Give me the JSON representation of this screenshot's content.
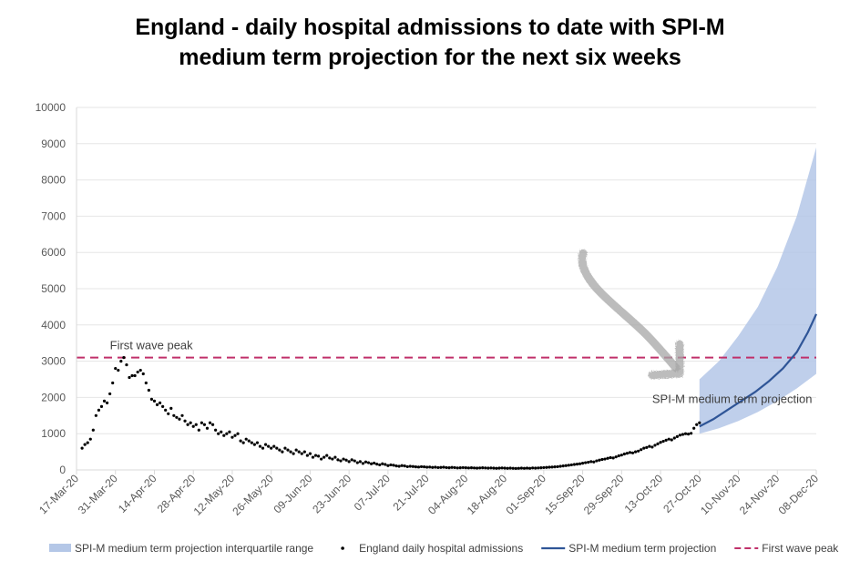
{
  "title_lines": [
    "England - daily hospital admissions to date with SPI-M",
    "medium term projection for the next six weeks"
  ],
  "chart_data": {
    "type": "line",
    "title": "England - daily hospital admissions to date with SPI-M medium term projection for the next six weeks",
    "xlabel": "",
    "ylabel": "",
    "ylim": [
      0,
      10000
    ],
    "yticks": [
      0,
      1000,
      2000,
      3000,
      4000,
      5000,
      6000,
      7000,
      8000,
      9000,
      10000
    ],
    "xlim": [
      "2020-03-17",
      "2020-12-08"
    ],
    "xticks": [
      "17-Mar-20",
      "31-Mar-20",
      "14-Apr-20",
      "28-Apr-20",
      "12-May-20",
      "26-May-20",
      "09-Jun-20",
      "23-Jun-20",
      "07-Jul-20",
      "21-Jul-20",
      "04-Aug-20",
      "18-Aug-20",
      "01-Sep-20",
      "15-Sep-20",
      "29-Sep-20",
      "13-Oct-20",
      "27-Oct-20",
      "10-Nov-20",
      "24-Nov-20",
      "08-Dec-20"
    ],
    "grid": "horizontal",
    "legend_position": "bottom",
    "colors": {
      "admissions": "#000000",
      "projection": "#2f5597",
      "band": "#b4c7e7",
      "first_wave_peak": "#c0306a"
    },
    "series": [
      {
        "name": "England daily hospital admissions",
        "style": "dots",
        "points": [
          [
            "2020-03-19",
            600
          ],
          [
            "2020-03-20",
            700
          ],
          [
            "2020-03-21",
            750
          ],
          [
            "2020-03-22",
            850
          ],
          [
            "2020-03-23",
            1100
          ],
          [
            "2020-03-24",
            1500
          ],
          [
            "2020-03-25",
            1650
          ],
          [
            "2020-03-26",
            1750
          ],
          [
            "2020-03-27",
            1900
          ],
          [
            "2020-03-28",
            1850
          ],
          [
            "2020-03-29",
            2100
          ],
          [
            "2020-03-30",
            2400
          ],
          [
            "2020-03-31",
            2800
          ],
          [
            "2020-04-01",
            2750
          ],
          [
            "2020-04-02",
            3000
          ],
          [
            "2020-04-03",
            3100
          ],
          [
            "2020-04-04",
            2900
          ],
          [
            "2020-04-05",
            2550
          ],
          [
            "2020-04-06",
            2600
          ],
          [
            "2020-04-07",
            2600
          ],
          [
            "2020-04-08",
            2700
          ],
          [
            "2020-04-09",
            2750
          ],
          [
            "2020-04-10",
            2650
          ],
          [
            "2020-04-11",
            2400
          ],
          [
            "2020-04-12",
            2200
          ],
          [
            "2020-04-13",
            1950
          ],
          [
            "2020-04-14",
            1900
          ],
          [
            "2020-04-15",
            1800
          ],
          [
            "2020-04-16",
            1850
          ],
          [
            "2020-04-17",
            1750
          ],
          [
            "2020-04-18",
            1650
          ],
          [
            "2020-04-19",
            1550
          ],
          [
            "2020-04-20",
            1700
          ],
          [
            "2020-04-21",
            1500
          ],
          [
            "2020-04-22",
            1450
          ],
          [
            "2020-04-23",
            1400
          ],
          [
            "2020-04-24",
            1500
          ],
          [
            "2020-04-25",
            1350
          ],
          [
            "2020-04-26",
            1250
          ],
          [
            "2020-04-27",
            1300
          ],
          [
            "2020-04-28",
            1200
          ],
          [
            "2020-04-29",
            1250
          ],
          [
            "2020-04-30",
            1100
          ],
          [
            "2020-05-01",
            1300
          ],
          [
            "2020-05-02",
            1250
          ],
          [
            "2020-05-03",
            1150
          ],
          [
            "2020-05-04",
            1300
          ],
          [
            "2020-05-05",
            1250
          ],
          [
            "2020-05-06",
            1100
          ],
          [
            "2020-05-07",
            1000
          ],
          [
            "2020-05-08",
            1050
          ],
          [
            "2020-05-09",
            950
          ],
          [
            "2020-05-10",
            1000
          ],
          [
            "2020-05-11",
            1050
          ],
          [
            "2020-05-12",
            900
          ],
          [
            "2020-05-13",
            950
          ],
          [
            "2020-05-14",
            1000
          ],
          [
            "2020-05-15",
            800
          ],
          [
            "2020-05-16",
            750
          ],
          [
            "2020-05-17",
            850
          ],
          [
            "2020-05-18",
            800
          ],
          [
            "2020-05-19",
            750
          ],
          [
            "2020-05-20",
            700
          ],
          [
            "2020-05-21",
            750
          ],
          [
            "2020-05-22",
            650
          ],
          [
            "2020-05-23",
            600
          ],
          [
            "2020-05-24",
            700
          ],
          [
            "2020-05-25",
            650
          ],
          [
            "2020-05-26",
            600
          ],
          [
            "2020-05-27",
            650
          ],
          [
            "2020-05-28",
            600
          ],
          [
            "2020-05-29",
            550
          ],
          [
            "2020-05-30",
            500
          ],
          [
            "2020-05-31",
            600
          ],
          [
            "2020-06-01",
            550
          ],
          [
            "2020-06-02",
            500
          ],
          [
            "2020-06-03",
            450
          ],
          [
            "2020-06-04",
            550
          ],
          [
            "2020-06-05",
            500
          ],
          [
            "2020-06-06",
            450
          ],
          [
            "2020-06-07",
            500
          ],
          [
            "2020-06-08",
            400
          ],
          [
            "2020-06-09",
            450
          ],
          [
            "2020-06-10",
            350
          ],
          [
            "2020-06-11",
            400
          ],
          [
            "2020-06-12",
            380
          ],
          [
            "2020-06-13",
            300
          ],
          [
            "2020-06-14",
            350
          ],
          [
            "2020-06-15",
            400
          ],
          [
            "2020-06-16",
            330
          ],
          [
            "2020-06-17",
            300
          ],
          [
            "2020-06-18",
            350
          ],
          [
            "2020-06-19",
            280
          ],
          [
            "2020-06-20",
            250
          ],
          [
            "2020-06-21",
            300
          ],
          [
            "2020-06-22",
            270
          ],
          [
            "2020-06-23",
            230
          ],
          [
            "2020-06-24",
            280
          ],
          [
            "2020-06-25",
            250
          ],
          [
            "2020-06-26",
            200
          ],
          [
            "2020-06-27",
            230
          ],
          [
            "2020-06-28",
            180
          ],
          [
            "2020-06-29",
            220
          ],
          [
            "2020-06-30",
            200
          ],
          [
            "2020-07-01",
            170
          ],
          [
            "2020-07-02",
            190
          ],
          [
            "2020-07-03",
            160
          ],
          [
            "2020-07-04",
            140
          ],
          [
            "2020-07-05",
            170
          ],
          [
            "2020-07-06",
            150
          ],
          [
            "2020-07-07",
            120
          ],
          [
            "2020-07-08",
            140
          ],
          [
            "2020-07-09",
            130
          ],
          [
            "2020-07-10",
            110
          ],
          [
            "2020-07-11",
            100
          ],
          [
            "2020-07-12",
            120
          ],
          [
            "2020-07-13",
            110
          ],
          [
            "2020-07-14",
            90
          ],
          [
            "2020-07-15",
            100
          ],
          [
            "2020-07-16",
            95
          ],
          [
            "2020-07-17",
            85
          ],
          [
            "2020-07-18",
            80
          ],
          [
            "2020-07-19",
            90
          ],
          [
            "2020-07-20",
            85
          ],
          [
            "2020-07-21",
            75
          ],
          [
            "2020-07-22",
            80
          ],
          [
            "2020-07-23",
            70
          ],
          [
            "2020-07-24",
            75
          ],
          [
            "2020-07-25",
            65
          ],
          [
            "2020-07-26",
            70
          ],
          [
            "2020-07-27",
            75
          ],
          [
            "2020-07-28",
            65
          ],
          [
            "2020-07-29",
            60
          ],
          [
            "2020-07-30",
            70
          ],
          [
            "2020-07-31",
            65
          ],
          [
            "2020-08-01",
            55
          ],
          [
            "2020-08-02",
            60
          ],
          [
            "2020-08-03",
            65
          ],
          [
            "2020-08-04",
            60
          ],
          [
            "2020-08-05",
            55
          ],
          [
            "2020-08-06",
            60
          ],
          [
            "2020-08-07",
            55
          ],
          [
            "2020-08-08",
            50
          ],
          [
            "2020-08-09",
            55
          ],
          [
            "2020-08-10",
            60
          ],
          [
            "2020-08-11",
            55
          ],
          [
            "2020-08-12",
            50
          ],
          [
            "2020-08-13",
            55
          ],
          [
            "2020-08-14",
            50
          ],
          [
            "2020-08-15",
            45
          ],
          [
            "2020-08-16",
            50
          ],
          [
            "2020-08-17",
            55
          ],
          [
            "2020-08-18",
            50
          ],
          [
            "2020-08-19",
            45
          ],
          [
            "2020-08-20",
            50
          ],
          [
            "2020-08-21",
            45
          ],
          [
            "2020-08-22",
            40
          ],
          [
            "2020-08-23",
            45
          ],
          [
            "2020-08-24",
            50
          ],
          [
            "2020-08-25",
            45
          ],
          [
            "2020-08-26",
            50
          ],
          [
            "2020-08-27",
            45
          ],
          [
            "2020-08-28",
            55
          ],
          [
            "2020-08-29",
            50
          ],
          [
            "2020-08-30",
            55
          ],
          [
            "2020-08-31",
            60
          ],
          [
            "2020-09-01",
            65
          ],
          [
            "2020-09-02",
            70
          ],
          [
            "2020-09-03",
            75
          ],
          [
            "2020-09-04",
            80
          ],
          [
            "2020-09-05",
            85
          ],
          [
            "2020-09-06",
            90
          ],
          [
            "2020-09-07",
            100
          ],
          [
            "2020-09-08",
            110
          ],
          [
            "2020-09-09",
            120
          ],
          [
            "2020-09-10",
            130
          ],
          [
            "2020-09-11",
            140
          ],
          [
            "2020-09-12",
            150
          ],
          [
            "2020-09-13",
            160
          ],
          [
            "2020-09-14",
            170
          ],
          [
            "2020-09-15",
            185
          ],
          [
            "2020-09-16",
            200
          ],
          [
            "2020-09-17",
            210
          ],
          [
            "2020-09-18",
            230
          ],
          [
            "2020-09-19",
            220
          ],
          [
            "2020-09-20",
            250
          ],
          [
            "2020-09-21",
            270
          ],
          [
            "2020-09-22",
            290
          ],
          [
            "2020-09-23",
            300
          ],
          [
            "2020-09-24",
            320
          ],
          [
            "2020-09-25",
            340
          ],
          [
            "2020-09-26",
            330
          ],
          [
            "2020-09-27",
            360
          ],
          [
            "2020-09-28",
            390
          ],
          [
            "2020-09-29",
            410
          ],
          [
            "2020-09-30",
            440
          ],
          [
            "2020-10-01",
            460
          ],
          [
            "2020-10-02",
            480
          ],
          [
            "2020-10-03",
            470
          ],
          [
            "2020-10-04",
            500
          ],
          [
            "2020-10-05",
            520
          ],
          [
            "2020-10-06",
            560
          ],
          [
            "2020-10-07",
            600
          ],
          [
            "2020-10-08",
            620
          ],
          [
            "2020-10-09",
            650
          ],
          [
            "2020-10-10",
            630
          ],
          [
            "2020-10-11",
            680
          ],
          [
            "2020-10-12",
            720
          ],
          [
            "2020-10-13",
            760
          ],
          [
            "2020-10-14",
            790
          ],
          [
            "2020-10-15",
            820
          ],
          [
            "2020-10-16",
            850
          ],
          [
            "2020-10-17",
            830
          ],
          [
            "2020-10-18",
            880
          ],
          [
            "2020-10-19",
            920
          ],
          [
            "2020-10-20",
            960
          ],
          [
            "2020-10-21",
            980
          ],
          [
            "2020-10-22",
            1000
          ],
          [
            "2020-10-23",
            990
          ],
          [
            "2020-10-24",
            1010
          ],
          [
            "2020-10-25",
            1150
          ],
          [
            "2020-10-26",
            1250
          ],
          [
            "2020-10-27",
            1300
          ]
        ]
      },
      {
        "name": "SPI-M medium term projection",
        "style": "line",
        "points": [
          [
            "2020-10-27",
            1200
          ],
          [
            "2020-11-01",
            1400
          ],
          [
            "2020-11-06",
            1650
          ],
          [
            "2020-11-11",
            1900
          ],
          [
            "2020-11-16",
            2150
          ],
          [
            "2020-11-21",
            2450
          ],
          [
            "2020-11-26",
            2800
          ],
          [
            "2020-12-01",
            3250
          ],
          [
            "2020-12-05",
            3800
          ],
          [
            "2020-12-08",
            4300
          ]
        ]
      },
      {
        "name": "SPI-M medium term projection interquartile range",
        "style": "band",
        "points": [
          [
            "2020-10-27",
            1000,
            2500
          ],
          [
            "2020-11-03",
            1150,
            3000
          ],
          [
            "2020-11-10",
            1350,
            3700
          ],
          [
            "2020-11-17",
            1600,
            4500
          ],
          [
            "2020-11-24",
            1900,
            5600
          ],
          [
            "2020-12-01",
            2250,
            7000
          ],
          [
            "2020-12-08",
            2650,
            8900
          ]
        ]
      },
      {
        "name": "First wave peak",
        "style": "dashed-reference",
        "value": 3100
      }
    ],
    "annotations": [
      {
        "text": "First wave peak",
        "x": "2020-03-29",
        "y": 3100
      },
      {
        "text": "SPI-M medium term projection",
        "x": "2020-10-10",
        "y": 2000
      }
    ],
    "legend": [
      "SPI-M medium term projection interquartile range",
      "England daily hospital admissions",
      "SPI-M medium term projection",
      "First wave peak"
    ]
  }
}
